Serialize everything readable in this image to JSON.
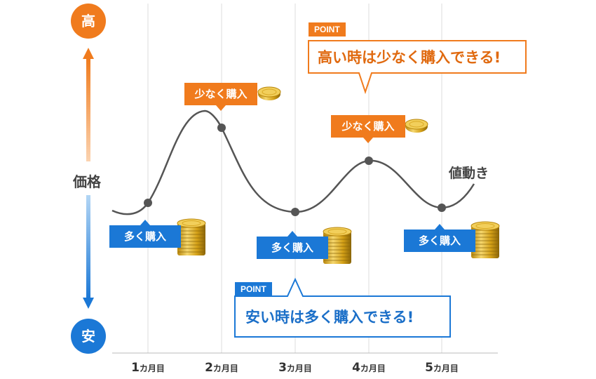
{
  "axis": {
    "high_label": "高",
    "low_label": "安",
    "price_label": "価格",
    "high_color": "#f07b1d",
    "low_color": "#1b78d6"
  },
  "series_label": "値動き",
  "months": [
    {
      "num": "1",
      "unit": "カ月目"
    },
    {
      "num": "2",
      "unit": "カ月目"
    },
    {
      "num": "3",
      "unit": "カ月目"
    },
    {
      "num": "4",
      "unit": "カ月目"
    },
    {
      "num": "5",
      "unit": "カ月目"
    }
  ],
  "buy_labels": {
    "low_price": "多く購入",
    "high_price": "少なく購入"
  },
  "point_top": {
    "tag": "POINT",
    "text": "高い時は少なく購入できる!"
  },
  "point_bottom": {
    "tag": "POINT",
    "text": "安い時は多く購入できる!"
  },
  "icons": {
    "coin_stack": "coin-stack-icon",
    "single_coin": "coin-icon",
    "arrow_up": "arrow-up-icon",
    "arrow_down": "arrow-down-icon"
  }
}
